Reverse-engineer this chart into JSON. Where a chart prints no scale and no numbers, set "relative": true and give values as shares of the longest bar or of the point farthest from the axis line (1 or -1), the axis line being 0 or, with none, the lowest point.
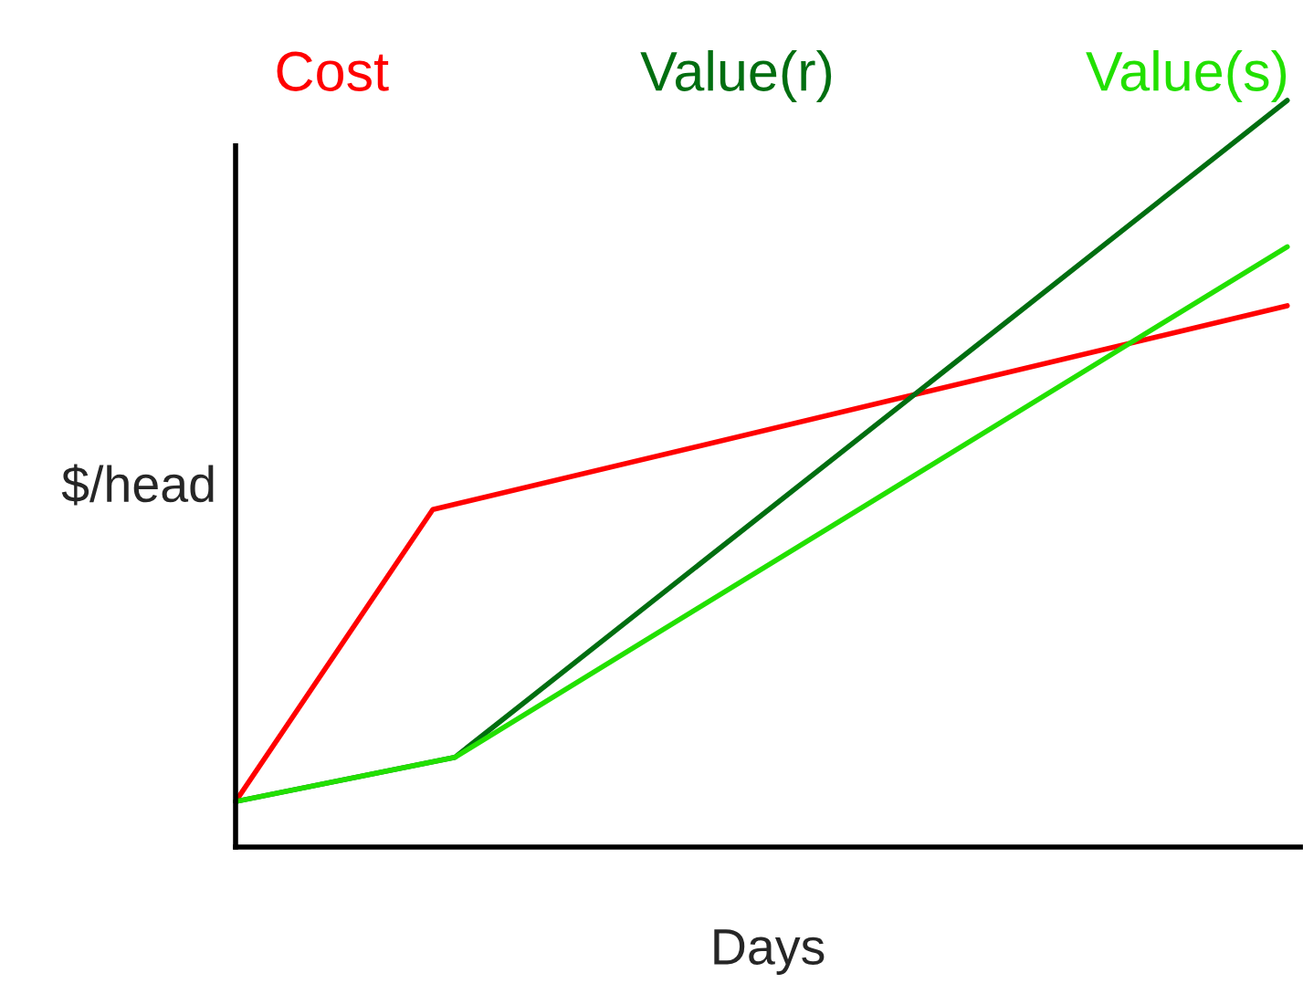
{
  "chart_data": {
    "type": "line",
    "relative": true,
    "xlabel": "Days",
    "ylabel": "$/head",
    "categories": [
      null,
      null,
      null,
      null,
      null,
      null,
      null,
      null,
      null,
      null,
      null,
      null,
      null,
      null,
      null,
      null,
      null,
      null,
      null,
      null,
      null,
      null,
      null,
      null,
      null,
      null,
      null,
      null,
      null,
      null,
      null,
      null,
      null,
      null,
      null,
      null,
      null,
      null,
      null,
      null,
      null,
      null,
      null,
      null,
      null,
      null,
      null,
      null,
      null
    ],
    "series": [
      {
        "name": "Cost",
        "color": "#ff0000",
        "values": [
          0.061,
          null,
          null,
          null,
          null,
          null,
          null,
          null,
          null,
          0.452,
          null,
          null,
          null,
          null,
          null,
          null,
          null,
          null,
          null,
          null,
          null,
          null,
          null,
          null,
          null,
          null,
          null,
          null,
          null,
          null,
          null,
          null,
          null,
          null,
          null,
          null,
          null,
          null,
          null,
          null,
          null,
          null,
          null,
          null,
          null,
          null,
          null,
          null,
          0.725
        ]
      },
      {
        "name": "Value(r)",
        "color": "#006e10",
        "values": [
          0.061,
          null,
          null,
          null,
          null,
          null,
          null,
          null,
          null,
          null,
          0.12,
          null,
          null,
          null,
          null,
          null,
          null,
          null,
          null,
          null,
          null,
          null,
          null,
          null,
          null,
          null,
          null,
          null,
          null,
          null,
          null,
          null,
          null,
          null,
          null,
          null,
          null,
          null,
          null,
          null,
          null,
          null,
          null,
          null,
          null,
          null,
          null,
          null,
          1.0
        ]
      },
      {
        "name": "Value(s)",
        "color": "#22e000",
        "values": [
          0.061,
          null,
          null,
          null,
          null,
          null,
          null,
          null,
          null,
          null,
          0.12,
          null,
          null,
          null,
          null,
          null,
          null,
          null,
          null,
          null,
          null,
          null,
          null,
          null,
          null,
          null,
          null,
          null,
          null,
          null,
          null,
          null,
          null,
          null,
          null,
          null,
          null,
          null,
          null,
          null,
          null,
          null,
          null,
          null,
          null,
          null,
          null,
          null,
          0.804
        ]
      }
    ],
    "legend": "top",
    "grid": false
  }
}
